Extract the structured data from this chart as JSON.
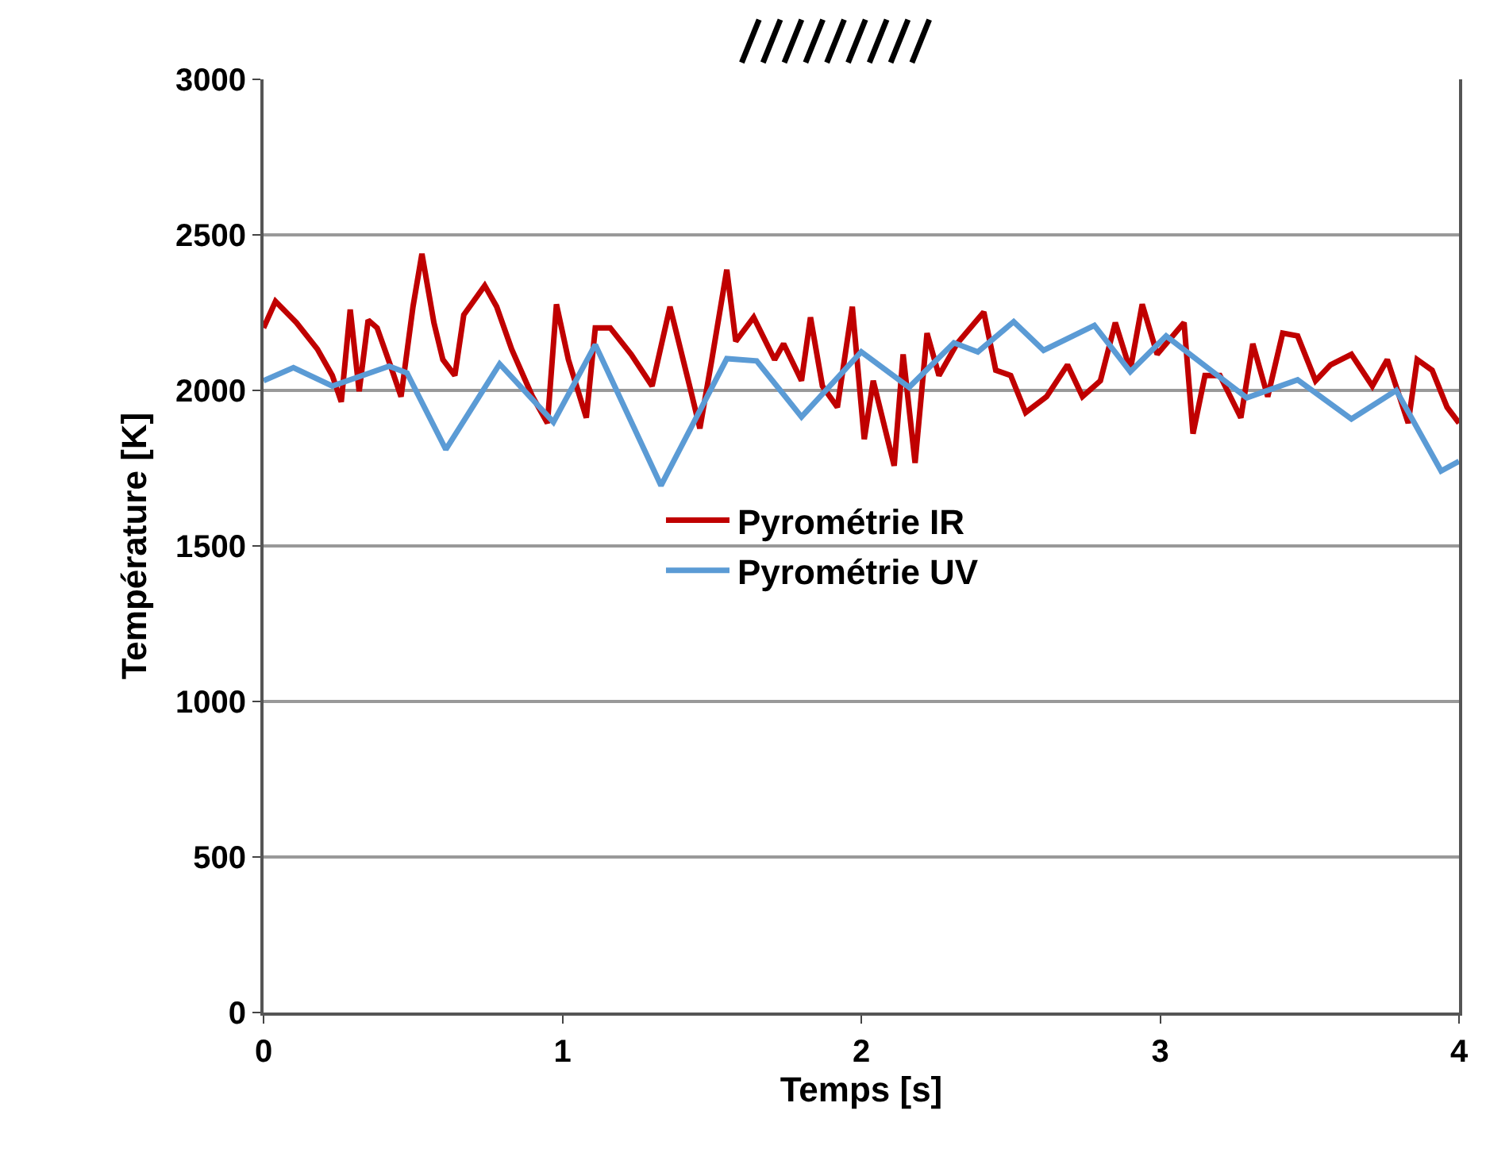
{
  "chart_data": {
    "type": "line",
    "xlabel": "Temps [s]",
    "ylabel": "Température [K]",
    "xlim": [
      0,
      4
    ],
    "xticks": [
      0,
      1,
      2,
      3,
      4
    ],
    "ylim": [
      0,
      3000
    ],
    "yticks": [
      0,
      500,
      1000,
      1500,
      2000,
      2500,
      3000
    ],
    "grid": "y",
    "legend": "center",
    "line_style": "solid",
    "marker": "none",
    "series": [
      {
        "name": "Pyrométrie IR",
        "color": "#c00000",
        "x": [
          0.0,
          0.04,
          0.11,
          0.18,
          0.23,
          0.26,
          0.29,
          0.32,
          0.35,
          0.38,
          0.43,
          0.46,
          0.5,
          0.53,
          0.57,
          0.6,
          0.64,
          0.67,
          0.74,
          0.78,
          0.83,
          0.9,
          0.95,
          0.98,
          1.02,
          1.08,
          1.11,
          1.16,
          1.23,
          1.3,
          1.36,
          1.43,
          1.46,
          1.5,
          1.55,
          1.58,
          1.64,
          1.71,
          1.74,
          1.8,
          1.83,
          1.87,
          1.92,
          1.97,
          2.01,
          2.04,
          2.11,
          2.14,
          2.18,
          2.22,
          2.26,
          2.32,
          2.38,
          2.41,
          2.45,
          2.5,
          2.55,
          2.62,
          2.69,
          2.74,
          2.8,
          2.85,
          2.9,
          2.94,
          2.99,
          3.08,
          3.11,
          3.15,
          3.2,
          3.27,
          3.31,
          3.36,
          3.41,
          3.46,
          3.52,
          3.57,
          3.64,
          3.71,
          3.76,
          3.83,
          3.86,
          3.91,
          3.96,
          4.0
        ],
        "values": [
          2201,
          2286,
          2218,
          2133,
          2048,
          1963,
          2260,
          1997,
          2226,
          2201,
          2065,
          1980,
          2269,
          2439,
          2218,
          2099,
          2048,
          2243,
          2337,
          2269,
          2133,
          1980,
          1895,
          2277,
          2099,
          1912,
          2201,
          2201,
          2116,
          2014,
          2269,
          1997,
          1878,
          2099,
          2388,
          2158,
          2235,
          2099,
          2150,
          2031,
          2235,
          2014,
          1946,
          2269,
          1843,
          2031,
          1758,
          2116,
          1767,
          2184,
          2048,
          2150,
          2218,
          2252,
          2065,
          2048,
          1929,
          1980,
          2082,
          1980,
          2031,
          2218,
          2065,
          2277,
          2116,
          2218,
          1861,
          2048,
          2048,
          1912,
          2150,
          1980,
          2184,
          2175,
          2031,
          2082,
          2116,
          2014,
          2099,
          1895,
          2099,
          2065,
          1946,
          1895
        ]
      },
      {
        "name": "Pyrométrie UV",
        "color": "#5b9bd5",
        "x": [
          0.0,
          0.1,
          0.23,
          0.42,
          0.48,
          0.61,
          0.79,
          0.97,
          1.11,
          1.33,
          1.55,
          1.65,
          1.8,
          2.0,
          2.16,
          2.31,
          2.39,
          2.51,
          2.61,
          2.78,
          2.9,
          3.02,
          3.29,
          3.46,
          3.64,
          3.79,
          3.94,
          4.0
        ],
        "values": [
          2031,
          2073,
          2014,
          2078,
          2056,
          1810,
          2085,
          1898,
          2147,
          1694,
          2102,
          2095,
          1915,
          2124,
          2010,
          2153,
          2124,
          2221,
          2129,
          2209,
          2060,
          2175,
          1976,
          2034,
          1908,
          2000,
          1741,
          1772
        ]
      }
    ]
  }
}
